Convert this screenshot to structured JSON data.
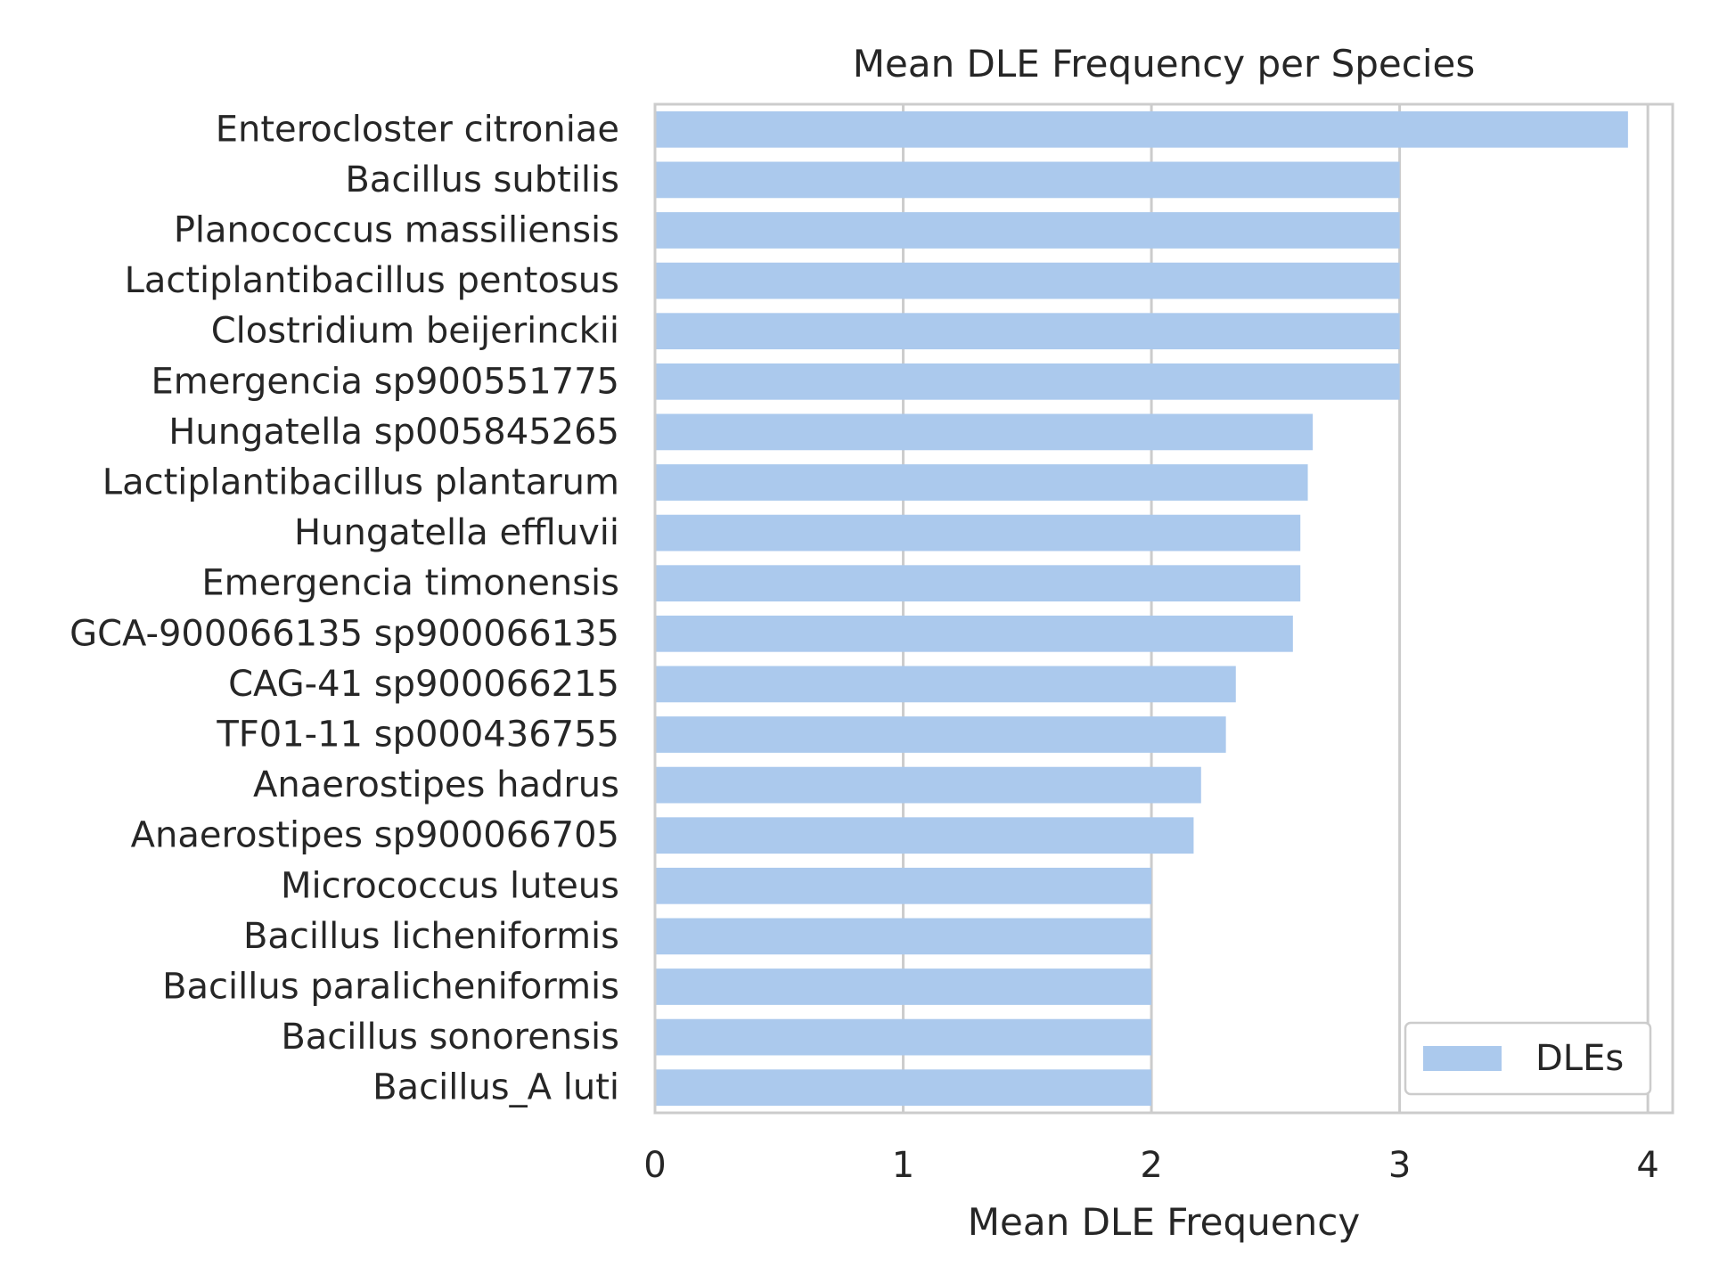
{
  "chart_data": {
    "type": "bar",
    "orientation": "horizontal",
    "title": "Mean DLE Frequency per Species",
    "xlabel": "Mean DLE Frequency",
    "ylabel": "",
    "xlim": [
      0,
      4.1
    ],
    "xticks": [
      0,
      1,
      2,
      3,
      4
    ],
    "grid": true,
    "legend_position": "lower right",
    "bar_color": "#abc9ed",
    "categories": [
      "Enterocloster citroniae",
      "Bacillus subtilis",
      "Planococcus massiliensis",
      "Lactiplantibacillus pentosus",
      "Clostridium beijerinckii",
      "Emergencia sp900551775",
      "Hungatella sp005845265",
      "Lactiplantibacillus plantarum",
      "Hungatella effluvii",
      "Emergencia timonensis",
      "GCA-900066135 sp900066135",
      "CAG-41 sp900066215",
      "TF01-11 sp000436755",
      "Anaerostipes hadrus",
      "Anaerostipes sp900066705",
      "Micrococcus luteus",
      "Bacillus licheniformis",
      "Bacillus paralicheniformis",
      "Bacillus sonorensis",
      "Bacillus_A luti"
    ],
    "series": [
      {
        "name": "DLEs",
        "values": [
          3.92,
          3.0,
          3.0,
          3.0,
          3.0,
          3.0,
          2.65,
          2.63,
          2.6,
          2.6,
          2.57,
          2.34,
          2.3,
          2.2,
          2.17,
          2.0,
          2.0,
          2.0,
          2.0,
          2.0
        ]
      }
    ]
  }
}
